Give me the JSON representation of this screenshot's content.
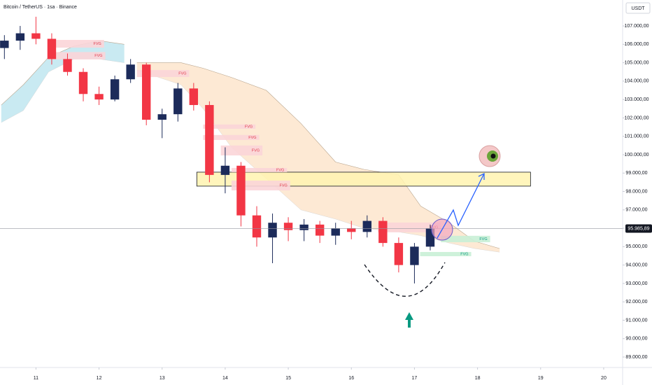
{
  "chart_data": {
    "type": "candlestick",
    "title": "Bitcoin / TetherUS · 1sa · Binance",
    "currency": "USDT",
    "x": [
      10.5,
      10.75,
      11,
      11.25,
      11.5,
      11.75,
      12,
      12.25,
      12.5,
      12.75,
      13,
      13.25,
      13.5,
      13.75,
      14,
      14.25,
      14.5,
      14.75,
      15,
      15.25,
      15.5,
      15.75,
      16,
      16.25,
      16.5,
      16.75,
      17,
      17.25
    ],
    "open": [
      105800,
      106200,
      106600,
      106300,
      105200,
      104500,
      103300,
      103000,
      104100,
      104900,
      101900,
      102200,
      103600,
      102700,
      98900,
      99400,
      96700,
      95500,
      96300,
      95900,
      96200,
      95600,
      96000,
      95800,
      96400,
      95200,
      94000,
      95000
    ],
    "high": [
      106500,
      107000,
      107500,
      106600,
      105500,
      104700,
      103700,
      104300,
      105200,
      105000,
      102500,
      103900,
      103900,
      102900,
      100400,
      99600,
      97200,
      96800,
      96600,
      96500,
      96400,
      96300,
      96400,
      96700,
      96600,
      95500,
      95200,
      96200
    ],
    "low": [
      105200,
      105700,
      106000,
      104900,
      104300,
      102900,
      102700,
      102900,
      103900,
      101600,
      100900,
      101800,
      102400,
      98500,
      97900,
      96100,
      95000,
      94100,
      95300,
      95300,
      95200,
      95100,
      95400,
      95500,
      95000,
      93600,
      93000,
      94800
    ],
    "close": [
      106200,
      106600,
      106300,
      105200,
      104500,
      103300,
      103000,
      104100,
      104900,
      101900,
      102200,
      103600,
      102700,
      98900,
      99400,
      96700,
      95500,
      96300,
      95900,
      96200,
      95600,
      96000,
      95800,
      96400,
      95200,
      94000,
      95000,
      95985.89
    ],
    "up_color": "#1c2b5a",
    "down_color": "#f23645",
    "xlim": [
      10.43,
      20.3
    ],
    "xticks": [
      11,
      12,
      13,
      14,
      15,
      16,
      17,
      18,
      19,
      20
    ],
    "ylim": [
      88430,
      108410
    ],
    "yticks": [
      {
        "value": 89000,
        "label": "89.000,00"
      },
      {
        "value": 90000,
        "label": "90.000,00"
      },
      {
        "value": 91000,
        "label": "91.000,00"
      },
      {
        "value": 92000,
        "label": "92.000,00"
      },
      {
        "value": 93000,
        "label": "93.000,00"
      },
      {
        "value": 94000,
        "label": "94.000,00"
      },
      {
        "value": 95000,
        "label": "95.000,00"
      },
      {
        "value": 96000,
        "label": "96.000,00"
      },
      {
        "value": 97000,
        "label": "97.000,00"
      },
      {
        "value": 98000,
        "label": "98.000,00"
      },
      {
        "value": 99000,
        "label": "99.000,00"
      },
      {
        "value": 100000,
        "label": "100.000,00"
      },
      {
        "value": 101000,
        "label": "101.000,00"
      },
      {
        "value": 102000,
        "label": "102.000,00"
      },
      {
        "value": 103000,
        "label": "103.000,00"
      },
      {
        "value": 104000,
        "label": "104.000,00"
      },
      {
        "value": 105000,
        "label": "105.000,00"
      },
      {
        "value": 106000,
        "label": "106.000,00"
      },
      {
        "value": 107000,
        "label": "107.000,00"
      }
    ],
    "last_price": {
      "value": 95985.89,
      "label": "95.985,89"
    },
    "clouds": [
      {
        "color": "#bfe6f0",
        "x": [
          10.45,
          10.8,
          11.2,
          11.6,
          12.0,
          12.4
        ],
        "upper": [
          102700,
          103800,
          105300,
          105900,
          106200,
          106000
        ],
        "lower": [
          101750,
          102400,
          104500,
          105200,
          105200,
          105000
        ]
      },
      {
        "color": "#fde5cc",
        "x": [
          12.6,
          13.3,
          13.65,
          14.1,
          14.65,
          15.2,
          15.75,
          16.2,
          16.75,
          17.1,
          17.55,
          17.95,
          18.35
        ],
        "upper": [
          105000,
          105000,
          104700,
          104200,
          103500,
          101700,
          99600,
          99200,
          98900,
          97200,
          96300,
          95300,
          94900
        ],
        "lower": [
          104600,
          103800,
          102500,
          100400,
          98700,
          97000,
          96500,
          96000,
          95800,
          95600,
          95200,
          94900,
          94700
        ]
      }
    ],
    "zones": [
      {
        "color": "#fff3b0",
        "x": [
          13.55,
          18.84
        ],
        "y": [
          99050,
          98290
        ]
      },
      {
        "label": "FVG",
        "color": "#fbd5d8",
        "x": [
          11.19,
          12.08
        ],
        "y": [
          106240,
          105820
        ]
      },
      {
        "label": "FVG",
        "color": "#fbd5d8",
        "x": [
          11.19,
          12.1
        ],
        "y": [
          105580,
          105180
        ]
      },
      {
        "label": "FVG",
        "color": "#fbd5d8",
        "x": [
          12.6,
          13.43
        ],
        "y": [
          104600,
          104220
        ]
      },
      {
        "label": "FVG",
        "color": "#fbd5d8",
        "x": [
          13.65,
          14.48
        ],
        "y": [
          101640,
          101410
        ]
      },
      {
        "label": "FVG",
        "color": "#fbd5d8",
        "x": [
          13.65,
          14.54
        ],
        "y": [
          101070,
          100800
        ]
      },
      {
        "label": "FVG",
        "color": "#fbd5d8",
        "x": [
          13.93,
          14.59
        ],
        "y": [
          100500,
          99960
        ]
      },
      {
        "label": "FVG",
        "color": "#fbd5d8",
        "x": [
          14.1,
          14.98
        ],
        "y": [
          99280,
          99050
        ]
      },
      {
        "label": "FVG",
        "color": "#fbd5d8",
        "x": [
          14.1,
          15.03
        ],
        "y": [
          98590,
          98060
        ]
      },
      {
        "label": "FVG",
        "color": "#fbd5d8",
        "x": [
          16.42,
          17.42
        ],
        "y": [
          96310,
          95780
        ]
      },
      {
        "label": "FVG",
        "color": "#c9f0d6",
        "x": [
          17.42,
          18.2
        ],
        "y": [
          95590,
          95240
        ]
      },
      {
        "label": "FVG",
        "color": "#c9f0d6",
        "x": [
          17.09,
          17.9
        ],
        "y": [
          94710,
          94480
        ]
      }
    ]
  }
}
